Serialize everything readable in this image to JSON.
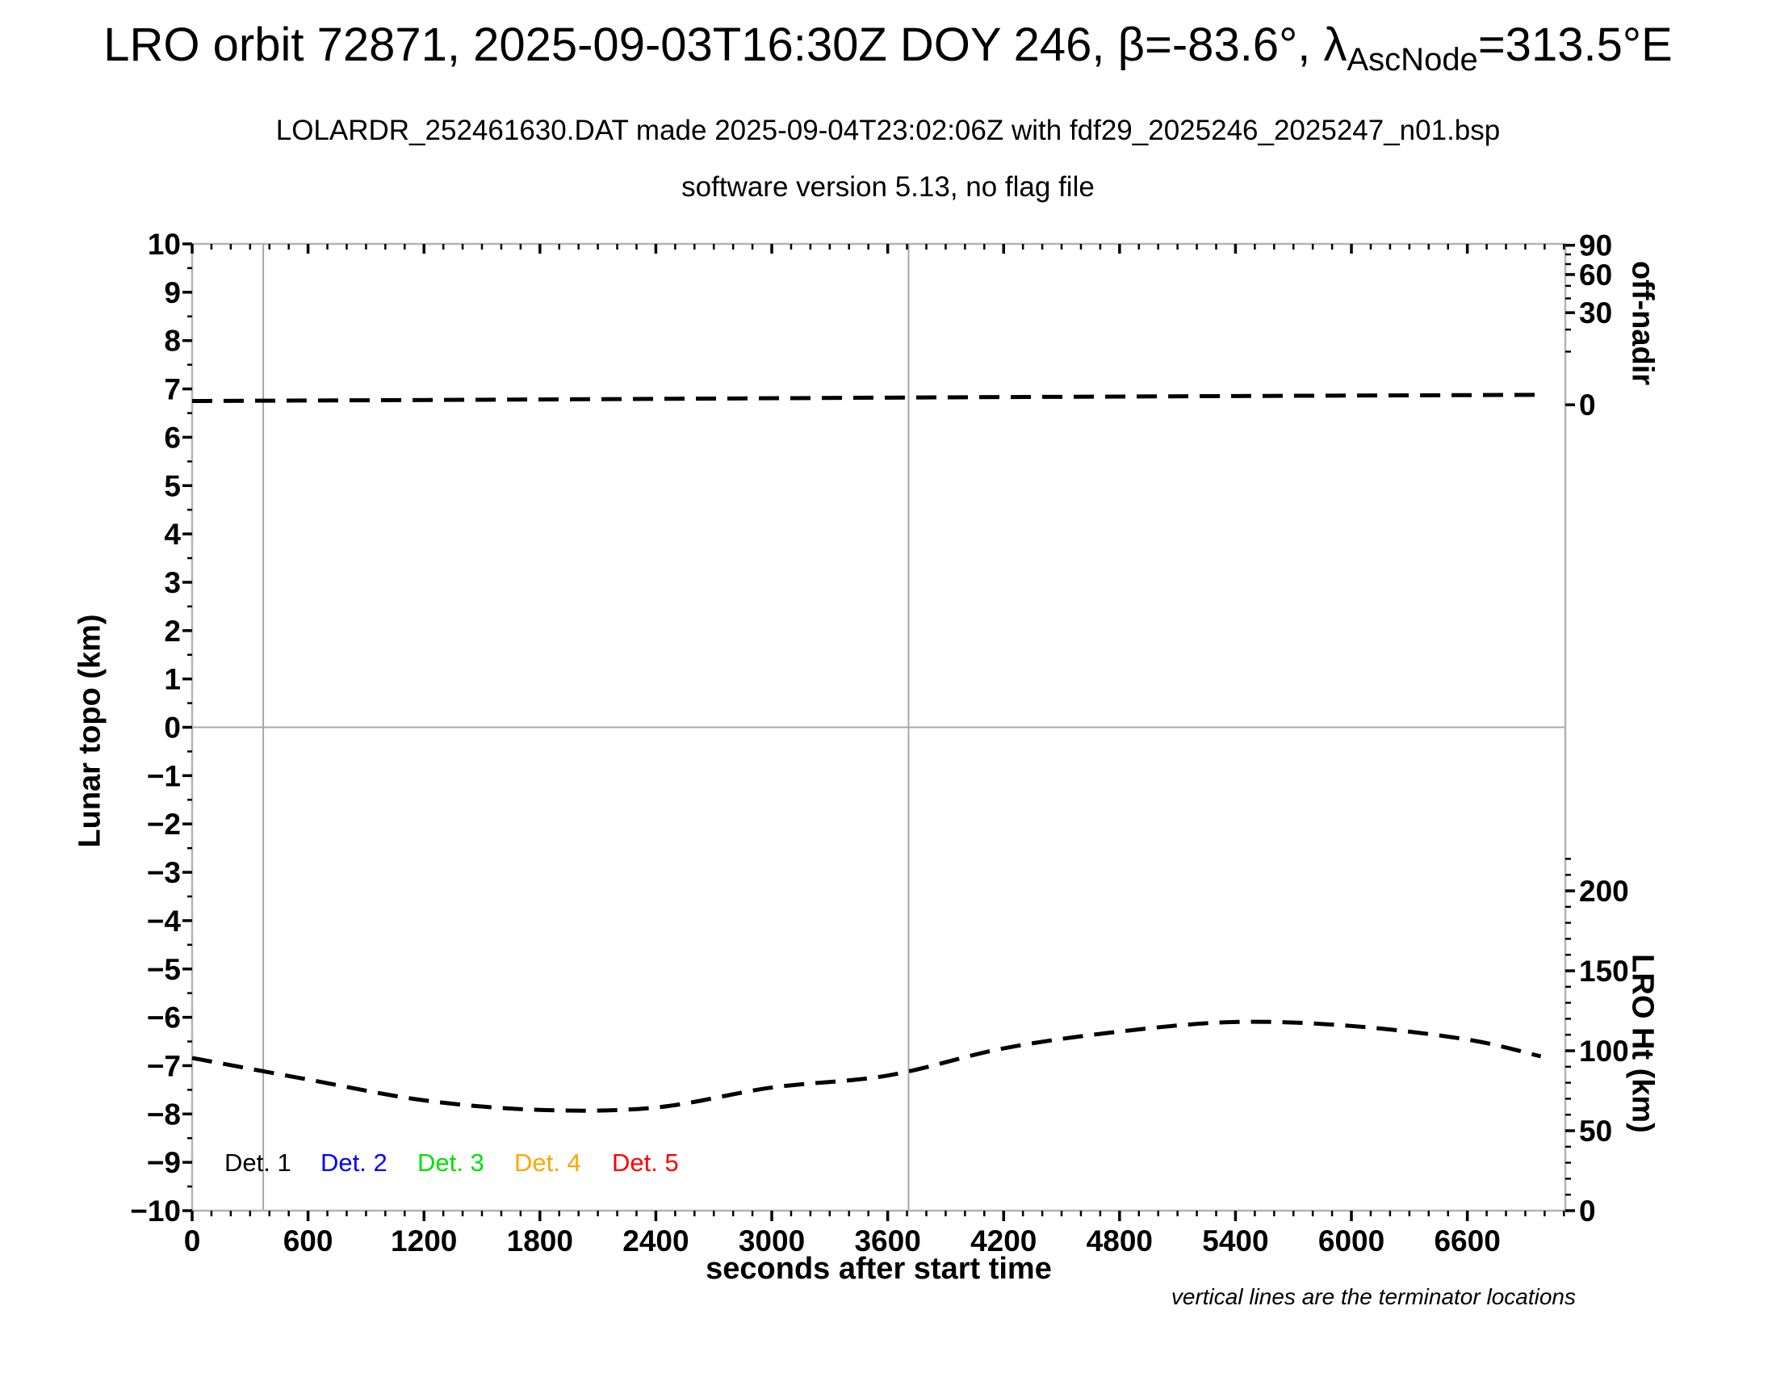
{
  "header": {
    "title_prefix": "LRO orbit 72871, 2025-09-03T16:30Z DOY 246, β=-83.6°, λ",
    "title_subscript": "AscNode",
    "title_suffix": "=313.5°E",
    "subtitle": "LOLARDR_252461630.DAT made 2025-09-04T23:02:06Z with fdf29_2025246_2025247_n01.bsp",
    "subtitle2": "software version 5.13, no flag file"
  },
  "chart_data": {
    "type": "line",
    "title": "LRO orbit 72871, 2025-09-03T16:30Z DOY 246, β=-83.6°, λ_AscNode=313.5°E",
    "x_axis": {
      "label": "seconds after start time",
      "min": 0,
      "max": 7107,
      "major_tick": 600,
      "minor_tick": 100,
      "tick_labels": [
        0,
        600,
        1200,
        1800,
        2400,
        3000,
        3600,
        4200,
        4800,
        5400,
        6000,
        6600
      ]
    },
    "y_left": {
      "label": "Lunar topo (km)",
      "min": -10,
      "max": 10,
      "major_tick": 1,
      "minor_tick": 0.5
    },
    "y_right_top": {
      "label": "off-nadir",
      "units": "deg",
      "scale": "sqrt",
      "tick_labels": [
        90,
        60,
        30,
        0
      ],
      "minor_ticks": [
        80,
        70,
        50,
        40,
        20,
        10
      ]
    },
    "y_right_bottom": {
      "label": "LRO Ht (km)",
      "min": 0,
      "max": 220,
      "major_tick": 50,
      "minor_tick": 10,
      "tick_labels": [
        200,
        150,
        100,
        50,
        0
      ]
    },
    "terminators_s": [
      368,
      3708
    ],
    "note": "vertical lines are the terminator locations",
    "legend": [
      {
        "label": "Det. 1",
        "color": "#000000"
      },
      {
        "label": "Det. 2",
        "color": "#0000ff"
      },
      {
        "label": "Det. 3",
        "color": "#00e100"
      },
      {
        "label": "Det. 4",
        "color": "#ffa500"
      },
      {
        "label": "Det. 5",
        "color": "#ff0000"
      }
    ],
    "series": [
      {
        "name": "off-nadir angle",
        "axis": "y_right_top",
        "color": "#000000",
        "style": "dashed",
        "points": {
          "t": [
            0,
            1800,
            3600,
            5400,
            7000
          ],
          "deg": [
            0.05,
            0.1,
            0.18,
            0.27,
            0.35
          ]
        }
      },
      {
        "name": "LRO height",
        "axis": "y_right_bottom",
        "color": "#000000",
        "style": "dashed",
        "points": {
          "t": [
            0,
            600,
            1200,
            1800,
            2400,
            3000,
            3600,
            4200,
            4800,
            5400,
            6000,
            6600,
            6980
          ],
          "km": [
            95.5,
            82,
            69,
            63,
            64.5,
            77,
            84.5,
            101.5,
            112,
            118,
            115.5,
            107,
            96.5
          ]
        }
      }
    ],
    "colors": {
      "frame": "#b3b3b3",
      "gridline": "#a8a8a8",
      "line": "#000000"
    }
  }
}
